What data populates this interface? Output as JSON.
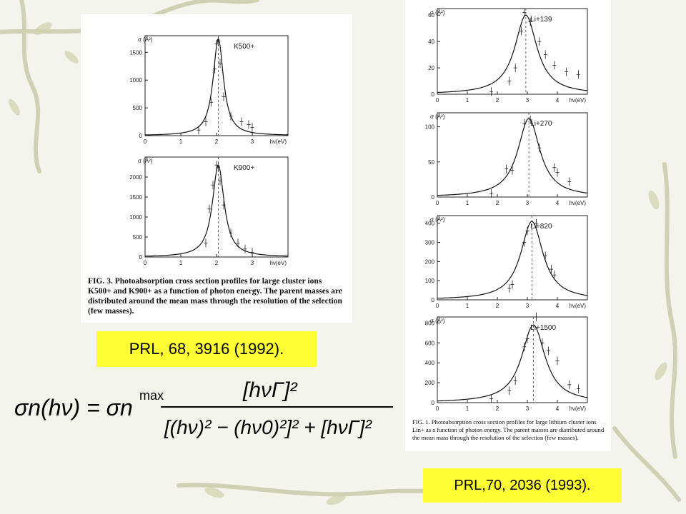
{
  "references": {
    "left": "PRL, 68, 3916 (1992).",
    "right": "PRL,70, 2036 (1993)."
  },
  "captions": {
    "left": "FIG. 3. Photoabsorption cross section profiles for large cluster ions K500+ and K900+ as a function of photon energy. The parent masses are distributed around the mean mass through the resolution of the selection (few masses).",
    "right": "FIG. 1. Photoabsorption cross section profiles for large lithium cluster ions Lin+ as a function of photon energy. The parent masses are distributed around the mean mass through the resolution of the selection (few masses)."
  },
  "formula": {
    "lhs": "σn(hν) = σn",
    "superscript": "max",
    "numerator": "[hνΓ]²",
    "denominator": "[(hν)² − (hν0)²]² + [hνΓ]²"
  },
  "chart_data": [
    {
      "type": "line",
      "label": "K500+",
      "ylabel": "σ (Å²)",
      "xlabel": "hν(eV)",
      "xlim": [
        0,
        4
      ],
      "ylim": [
        0,
        1800
      ],
      "xticks": [
        0,
        1,
        2,
        3
      ],
      "yticks": [
        0,
        500,
        1000,
        1500
      ],
      "peak_eV": 2.05,
      "peak_value": 1750,
      "width_eV": 0.35,
      "points": [
        [
          1.5,
          100
        ],
        [
          1.7,
          250
        ],
        [
          1.85,
          600
        ],
        [
          1.95,
          1200
        ],
        [
          2.0,
          1650
        ],
        [
          2.05,
          1700
        ],
        [
          2.1,
          1300
        ],
        [
          2.2,
          700
        ],
        [
          2.4,
          350
        ],
        [
          2.7,
          250
        ],
        [
          2.9,
          200
        ],
        [
          3.0,
          150
        ]
      ]
    },
    {
      "type": "line",
      "label": "K900+",
      "ylabel": "σ (Å²)",
      "xlabel": "hν(eV)",
      "xlim": [
        0,
        4
      ],
      "ylim": [
        0,
        2500
      ],
      "xticks": [
        0,
        1,
        2,
        3
      ],
      "yticks": [
        0,
        500,
        1000,
        1500,
        2000
      ],
      "peak_eV": 2.05,
      "peak_value": 2300,
      "width_eV": 0.4,
      "points": [
        [
          1.7,
          350
        ],
        [
          1.8,
          1200
        ],
        [
          1.9,
          1800
        ],
        [
          2.0,
          2300
        ],
        [
          2.05,
          2250
        ],
        [
          2.1,
          1900
        ],
        [
          2.2,
          1300
        ],
        [
          2.4,
          600
        ],
        [
          2.6,
          350
        ],
        [
          2.8,
          200
        ],
        [
          3.0,
          120
        ]
      ]
    },
    {
      "type": "line",
      "label": "Li+139",
      "ylabel": "σ (Å²)",
      "xlabel": "hν(eV)",
      "xlim": [
        0,
        5
      ],
      "ylim": [
        0,
        65
      ],
      "xticks": [
        0,
        1,
        2,
        3,
        4
      ],
      "yticks": [
        0,
        20,
        40,
        60
      ],
      "peak_eV": 2.95,
      "peak_value": 60,
      "width_eV": 0.9,
      "points": [
        [
          1.8,
          2
        ],
        [
          2.4,
          10
        ],
        [
          2.6,
          20
        ],
        [
          2.8,
          48
        ],
        [
          2.9,
          62
        ],
        [
          3.1,
          55
        ],
        [
          3.4,
          40
        ],
        [
          3.6,
          30
        ],
        [
          3.9,
          22
        ],
        [
          4.3,
          17
        ],
        [
          4.7,
          15
        ]
      ]
    },
    {
      "type": "line",
      "label": "Li+270",
      "ylabel": "σ (Å²)",
      "xlabel": "hν(eV)",
      "xlim": [
        0,
        5
      ],
      "ylim": [
        0,
        120
      ],
      "xticks": [
        0,
        1,
        2,
        3,
        4
      ],
      "yticks": [
        0,
        50,
        100
      ],
      "peak_eV": 3.05,
      "peak_value": 112,
      "width_eV": 0.9,
      "points": [
        [
          1.8,
          5
        ],
        [
          2.3,
          40
        ],
        [
          2.5,
          38
        ],
        [
          2.9,
          105
        ],
        [
          3.1,
          110
        ],
        [
          3.4,
          70
        ],
        [
          3.9,
          42
        ],
        [
          4.0,
          35
        ],
        [
          4.4,
          22
        ]
      ]
    },
    {
      "type": "line",
      "label": "Li+820",
      "ylabel": "σ (Å²)",
      "xlabel": "hν(eV)",
      "xlim": [
        0,
        5
      ],
      "ylim": [
        0,
        440
      ],
      "xticks": [
        0,
        1,
        2,
        3,
        4
      ],
      "yticks": [
        0,
        100,
        200,
        300,
        400
      ],
      "peak_eV": 3.15,
      "peak_value": 410,
      "width_eV": 0.9,
      "points": [
        [
          2.4,
          60
        ],
        [
          2.5,
          80
        ],
        [
          2.9,
          300
        ],
        [
          3.0,
          360
        ],
        [
          3.3,
          400
        ],
        [
          3.6,
          230
        ],
        [
          3.8,
          160
        ],
        [
          3.9,
          130
        ]
      ]
    },
    {
      "type": "line",
      "label": "Li+1500",
      "ylabel": "σ (Å²)",
      "xlabel": "hν(eV)",
      "xlim": [
        0,
        5
      ],
      "ylim": [
        0,
        860
      ],
      "xticks": [
        0,
        1,
        2,
        3,
        4
      ],
      "yticks": [
        0,
        200,
        400,
        600,
        800
      ],
      "peak_eV": 3.2,
      "peak_value": 780,
      "width_eV": 0.95,
      "points": [
        [
          1.8,
          40
        ],
        [
          2.4,
          120
        ],
        [
          2.6,
          220
        ],
        [
          2.9,
          560
        ],
        [
          3.0,
          640
        ],
        [
          3.3,
          860
        ],
        [
          3.5,
          600
        ],
        [
          3.7,
          520
        ],
        [
          4.0,
          420
        ],
        [
          4.4,
          180
        ],
        [
          4.7,
          140
        ]
      ]
    }
  ]
}
